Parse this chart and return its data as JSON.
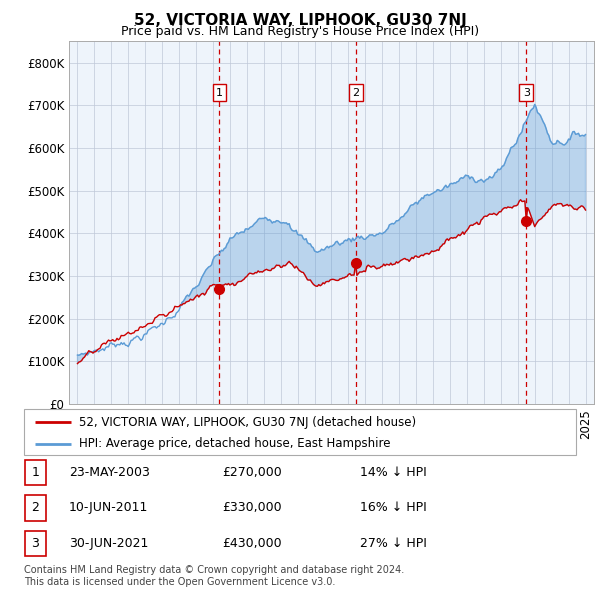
{
  "title": "52, VICTORIA WAY, LIPHOOK, GU30 7NJ",
  "subtitle": "Price paid vs. HM Land Registry's House Price Index (HPI)",
  "hpi_color": "#5b9bd5",
  "hpi_fill_color": "#dce9f5",
  "price_color": "#cc0000",
  "dashed_color": "#cc0000",
  "ylim": [
    0,
    850000
  ],
  "yticks": [
    0,
    100000,
    200000,
    300000,
    400000,
    500000,
    600000,
    700000,
    800000
  ],
  "transactions": [
    {
      "label": "1",
      "date": "23-MAY-2003",
      "price": 270000,
      "year": 2003.38,
      "pct": "14%",
      "direction": "↓"
    },
    {
      "label": "2",
      "date": "10-JUN-2011",
      "price": 330000,
      "year": 2011.44,
      "pct": "16%",
      "direction": "↓"
    },
    {
      "label": "3",
      "date": "30-JUN-2021",
      "price": 430000,
      "year": 2021.5,
      "pct": "27%",
      "direction": "↓"
    }
  ],
  "legend_label_red": "52, VICTORIA WAY, LIPHOOK, GU30 7NJ (detached house)",
  "legend_label_blue": "HPI: Average price, detached house, East Hampshire",
  "footnote": "Contains HM Land Registry data © Crown copyright and database right 2024.\nThis data is licensed under the Open Government Licence v3.0.",
  "chart_bg": "#eef4fb",
  "grid_color": "#c0c8d8"
}
